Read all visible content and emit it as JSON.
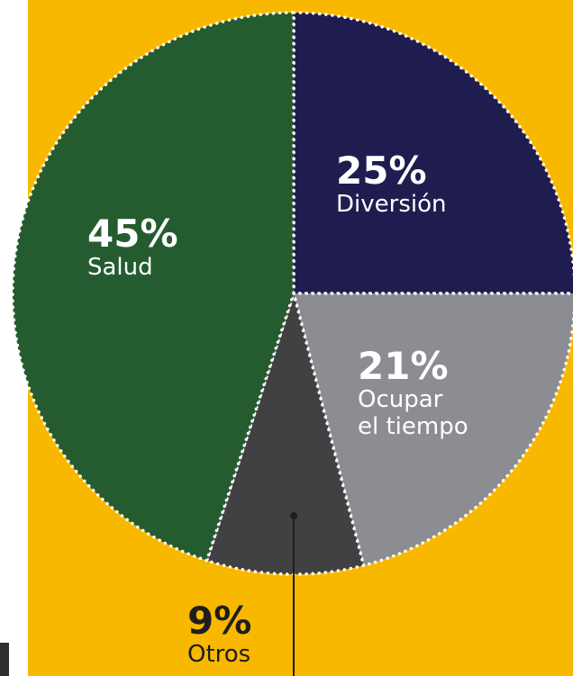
{
  "chart_data": {
    "type": "pie",
    "categories": [
      "Diversión",
      "Ocupar\nel tiempo",
      "Otros",
      "Salud"
    ],
    "values": [
      25,
      21,
      9,
      45
    ],
    "value_labels": [
      "25%",
      "21%",
      "9%",
      "45%"
    ],
    "colors": [
      "#1f1d50",
      "#8c8d93",
      "#414042",
      "#245c30"
    ]
  }
}
